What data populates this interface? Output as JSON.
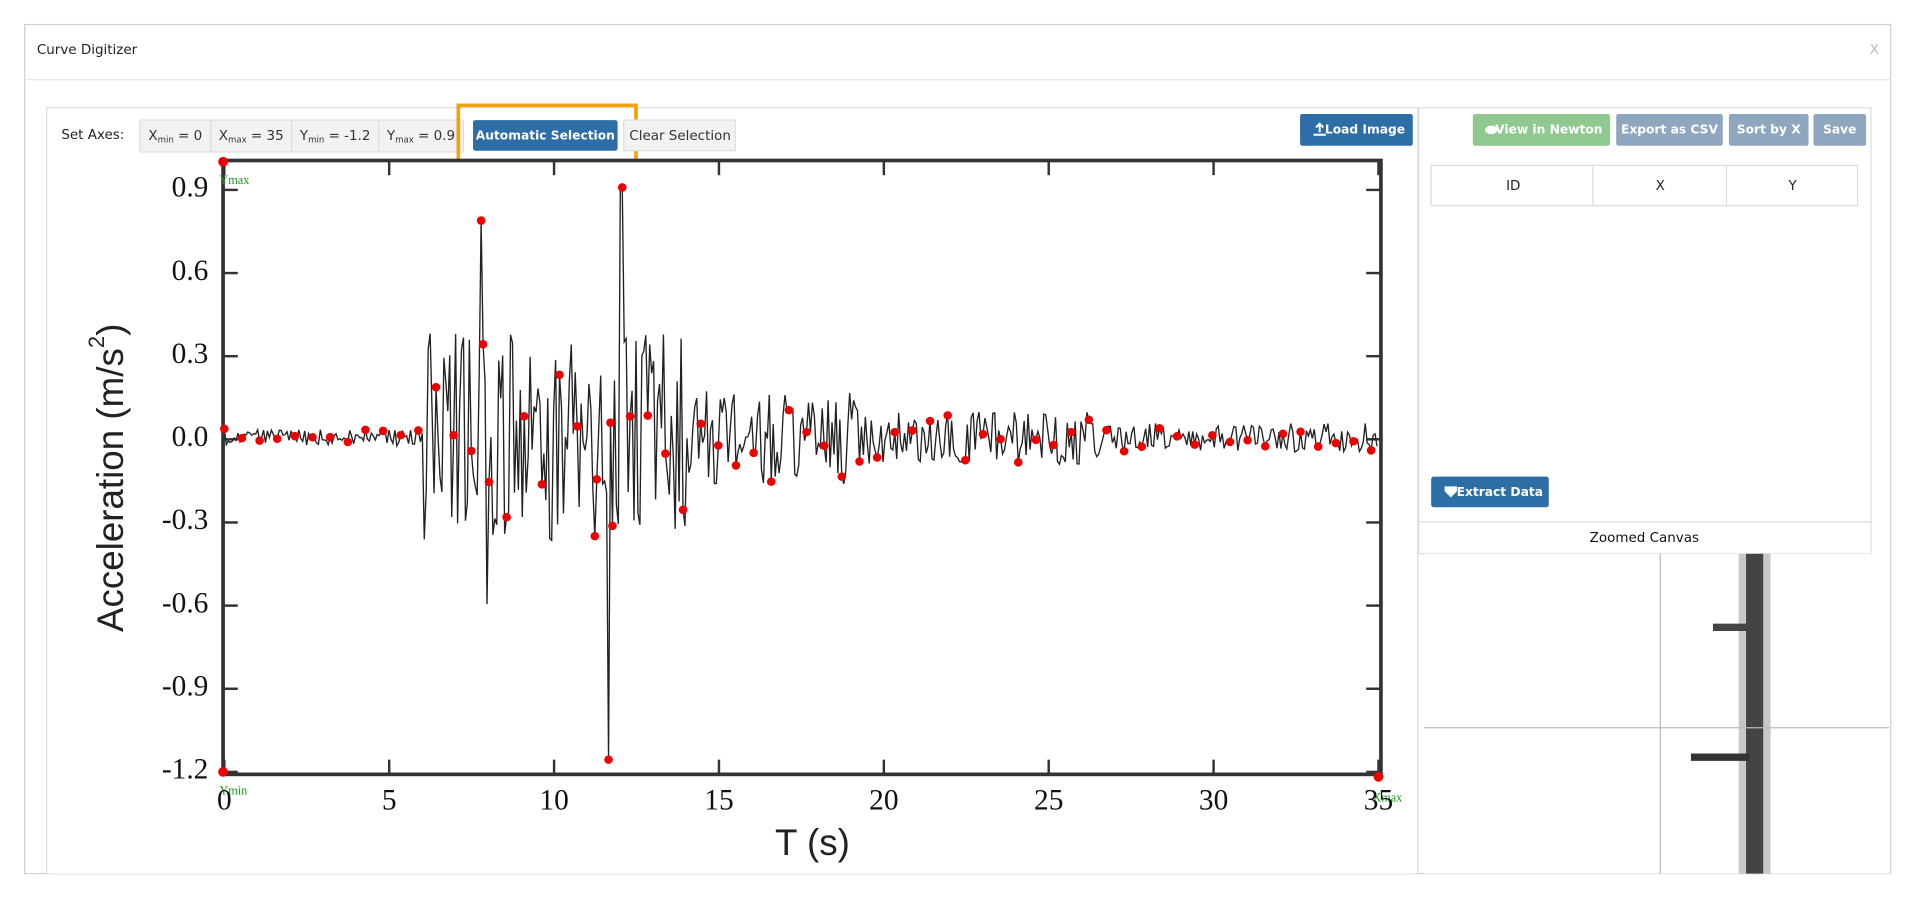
{
  "dialog": {
    "title": "Curve Digitizer",
    "close": "X"
  },
  "toolbar": {
    "label": "Set Axes:",
    "axes": [
      {
        "name": "X",
        "sub": "min",
        "value": " = 0"
      },
      {
        "name": "X",
        "sub": "max",
        "value": " = 35"
      },
      {
        "name": "Y",
        "sub": "min",
        "value": " = -1.2"
      },
      {
        "name": "Y",
        "sub": "max",
        "value": " = 0.9"
      }
    ],
    "automatic": "Automatic Selection",
    "clear": "Clear Selection",
    "load": "Load Image"
  },
  "right_panel": {
    "buttons": [
      "View in Newton",
      "Export as CSV",
      "Sort by X",
      "Save"
    ],
    "table": {
      "columns": [
        "ID",
        "X",
        "Y"
      ]
    },
    "extract": "Extract Data",
    "zoom_title": "Zoomed Canvas"
  },
  "image": {
    "ylabel": "Acceleration (m/s",
    "ylabel_sup": "2",
    "ylabel_end": ")",
    "xlabel": "T (s)",
    "yticks": [
      "0.9",
      "0.6",
      "0.3",
      "0.0",
      "-0.3",
      "-0.6",
      "-0.9",
      "-1.2"
    ],
    "xticks": [
      "0",
      "5",
      "10",
      "15",
      "20",
      "25",
      "30",
      "35"
    ],
    "markers": {
      "ymax": "Ymax",
      "ymin": "Ymin",
      "xmax": "Xmax"
    }
  }
}
